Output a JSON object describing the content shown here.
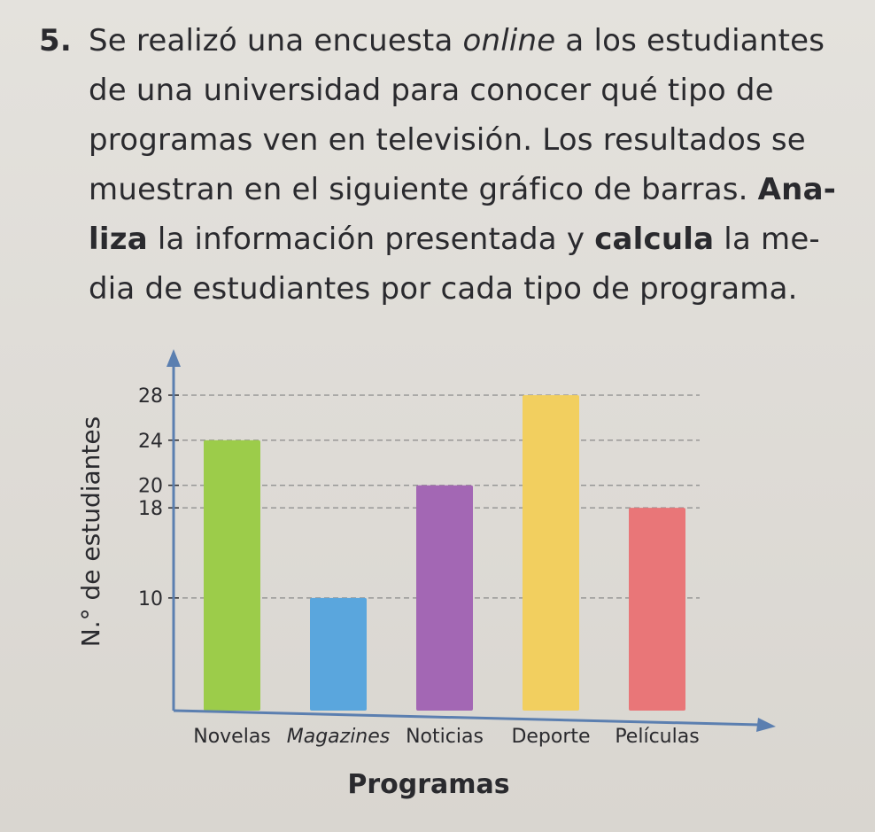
{
  "problem": {
    "number": "5.",
    "lines": [
      [
        "Se realizó una encuesta ",
        "online",
        " a los estudiantes"
      ],
      "de una universidad para conocer qué tipo de",
      "programas ven en televisión. Los resultados se",
      [
        "muestran en el siguiente gráfico de barras. ",
        "Ana-"
      ],
      [
        "liza",
        " la información presentada y ",
        "calcula",
        " la me-"
      ],
      "dia de estudiantes por cada tipo de programa."
    ]
  },
  "chart_data": {
    "type": "bar",
    "categories": [
      "Novelas",
      "Magazines",
      "Noticias",
      "Deporte",
      "Películas"
    ],
    "categories_italic": [
      false,
      true,
      false,
      false,
      false
    ],
    "values": [
      24,
      10,
      20,
      28,
      18
    ],
    "colors": [
      "#9ccc4a",
      "#5aa6dd",
      "#a367b4",
      "#f2cf5f",
      "#e97678"
    ],
    "yticks": [
      10,
      18,
      20,
      24,
      28
    ],
    "ylabel": "N.° de estudiantes",
    "xlabel": "Programas",
    "grid": "dashed",
    "axis_color": "#5b7fb0"
  }
}
